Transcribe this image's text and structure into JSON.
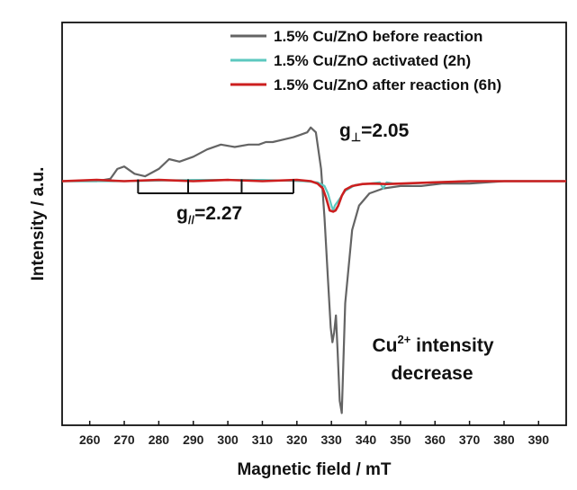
{
  "chart_data": {
    "type": "line",
    "xlabel": "Magnetic field / mT",
    "ylabel": "Intensity / a.u.",
    "xlim": [
      252,
      398
    ],
    "ylim": [
      -1.0,
      0.65
    ],
    "xticks": [
      260,
      270,
      280,
      290,
      300,
      310,
      320,
      330,
      340,
      350,
      360,
      370,
      380,
      390
    ],
    "grid": false,
    "legend_position": "top-right",
    "series": [
      {
        "name": "1.5% Cu/ZnO before reaction",
        "color": "#646464",
        "x": [
          252,
          262,
          266,
          268,
          270,
          273,
          276,
          280,
          283,
          286,
          290,
          294,
          298,
          302,
          306,
          309,
          311,
          313,
          316,
          319,
          321,
          323,
          324,
          325.5,
          327,
          328,
          329,
          329.8,
          330.3,
          330.8,
          331.3,
          331.8,
          332.4,
          333,
          334,
          336,
          338,
          341,
          345,
          350,
          356,
          362,
          370,
          380,
          398
        ],
        "y": [
          0,
          0,
          0.01,
          0.05,
          0.06,
          0.03,
          0.02,
          0.05,
          0.09,
          0.08,
          0.1,
          0.13,
          0.15,
          0.14,
          0.15,
          0.15,
          0.16,
          0.16,
          0.17,
          0.18,
          0.19,
          0.2,
          0.22,
          0.2,
          0.05,
          -0.15,
          -0.4,
          -0.6,
          -0.66,
          -0.62,
          -0.55,
          -0.7,
          -0.9,
          -0.95,
          -0.5,
          -0.2,
          -0.1,
          -0.05,
          -0.03,
          -0.02,
          -0.02,
          -0.01,
          -0.01,
          0,
          0
        ]
      },
      {
        "name": "1.5% Cu/ZnO activated (2h)",
        "color": "#5cc8bf",
        "x": [
          252,
          270,
          290,
          310,
          322,
          326,
          328,
          329,
          330,
          330.5,
          331,
          332,
          334,
          337,
          341,
          344,
          345,
          346,
          348,
          352,
          360,
          370,
          380,
          398
        ],
        "y": [
          0,
          0,
          0.005,
          0.005,
          0,
          -0.005,
          -0.02,
          -0.05,
          -0.1,
          -0.12,
          -0.1,
          -0.08,
          -0.04,
          -0.015,
          -0.01,
          -0.005,
          -0.03,
          -0.005,
          -0.01,
          -0.01,
          -0.005,
          0,
          0,
          0
        ]
      },
      {
        "name": "1.5% Cu/ZnO after reaction (6h)",
        "color": "#cc1f1f",
        "x": [
          252,
          262,
          270,
          280,
          290,
          300,
          310,
          320,
          324,
          326,
          327.5,
          328.5,
          329.5,
          330.5,
          331.2,
          332,
          333,
          334,
          336,
          339,
          342,
          346,
          350,
          360,
          370,
          380,
          398
        ],
        "y": [
          0,
          0.005,
          0.0,
          0.005,
          0.0,
          0.005,
          0.0,
          0.005,
          0.0,
          -0.01,
          -0.03,
          -0.07,
          -0.12,
          -0.125,
          -0.12,
          -0.1,
          -0.06,
          -0.035,
          -0.02,
          -0.012,
          -0.01,
          -0.012,
          -0.01,
          -0.005,
          0,
          0,
          0
        ]
      }
    ],
    "annotations": {
      "g_perp": {
        "prefix": "g",
        "sub": "⊥",
        "value": "=2.05"
      },
      "g_par": {
        "prefix": "g",
        "sub": "//",
        "value": "=2.27"
      },
      "cu_intensity_line1_a": "Cu",
      "cu_intensity_sup": "2+",
      "cu_intensity_line1_b": " intensity",
      "cu_intensity_line2": "decrease"
    },
    "hyperfine_bracket_fields": [
      274,
      288.5,
      304,
      319
    ]
  }
}
